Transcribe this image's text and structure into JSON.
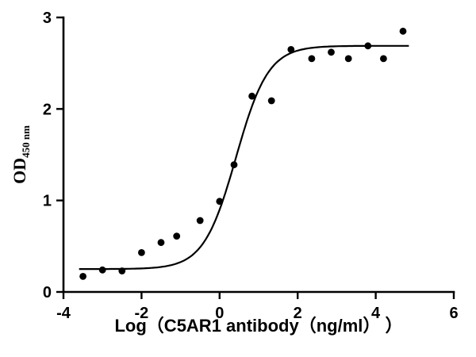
{
  "chart_data": {
    "type": "scatter",
    "title": "",
    "xlabel": "Log（C5AR1 antibody（ng/ml） ）",
    "ylabel_main": "OD",
    "ylabel_sub": "450 nm",
    "xlim": [
      -4,
      6
    ],
    "ylim": [
      0,
      3
    ],
    "xticks": [
      -4,
      -2,
      0,
      2,
      4,
      6
    ],
    "yticks": [
      0,
      1,
      2,
      3
    ],
    "grid": false,
    "legend": "none",
    "marker_color": "#000000",
    "curve_color": "#000000",
    "points": [
      [
        -3.5,
        0.17
      ],
      [
        -3.0,
        0.24
      ],
      [
        -2.5,
        0.23
      ],
      [
        -2.0,
        0.43
      ],
      [
        -1.5,
        0.54
      ],
      [
        -1.1,
        0.61
      ],
      [
        -0.5,
        0.78
      ],
      [
        0.0,
        0.99
      ],
      [
        0.37,
        1.39
      ],
      [
        0.83,
        2.14
      ],
      [
        1.33,
        2.09
      ],
      [
        1.83,
        2.65
      ],
      [
        2.36,
        2.55
      ],
      [
        2.86,
        2.62
      ],
      [
        3.3,
        2.55
      ],
      [
        3.8,
        2.69
      ],
      [
        4.2,
        2.55
      ],
      [
        4.7,
        2.85
      ]
    ],
    "fit": {
      "model": "4PL sigmoid",
      "bottom": 0.25,
      "top": 2.69,
      "logEC50": 0.42,
      "hillslope": 1.05,
      "xstart": -3.6,
      "xend": 4.85
    }
  }
}
